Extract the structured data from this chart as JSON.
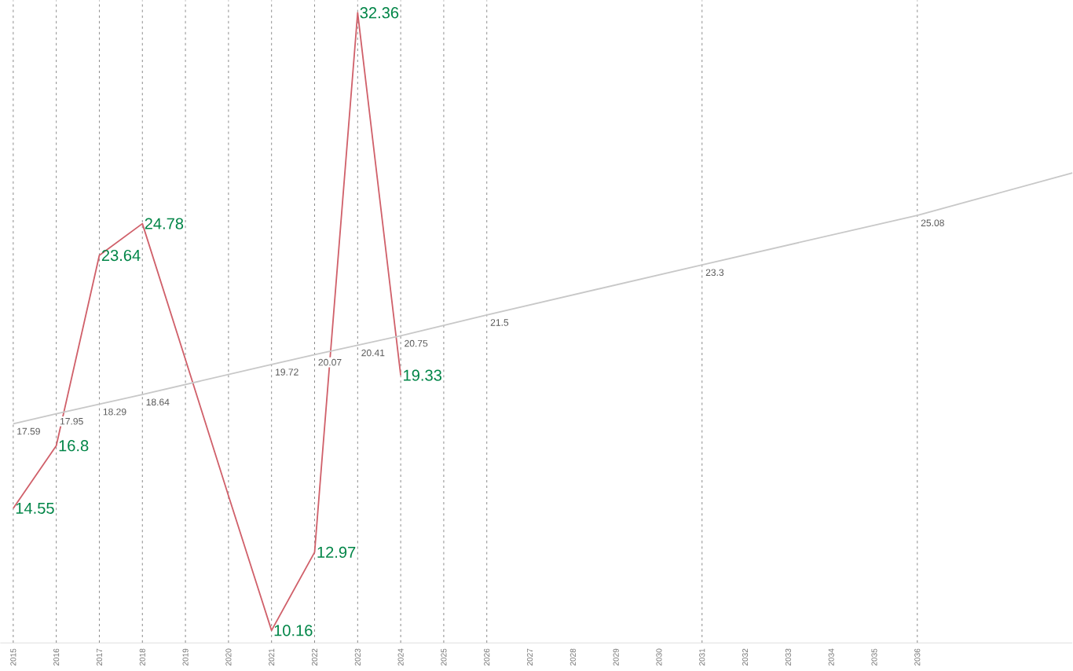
{
  "chart_data": {
    "type": "line",
    "series": [
      {
        "color": "#d0606a",
        "x": [
          2015,
          2016,
          2017,
          2018,
          2019,
          2020,
          2021,
          2022,
          2023,
          2024
        ],
        "values": [
          14.55,
          16.8,
          23.64,
          24.78,
          19.9,
          15.0,
          10.16,
          12.97,
          32.36,
          19.33
        ],
        "value_labels": [
          "14.55",
          "16.8",
          "23.64",
          "24.78",
          null,
          null,
          "10.16",
          "12.97",
          "32.36",
          "19.33"
        ]
      },
      {
        "color": "#c8c8c8",
        "x": [
          2015,
          2016,
          2017,
          2018,
          2021,
          2022,
          2023,
          2024,
          2026,
          2031,
          2036,
          2039.6
        ],
        "values": [
          17.59,
          17.95,
          18.29,
          18.64,
          19.72,
          20.07,
          20.41,
          20.75,
          21.5,
          23.3,
          25.08,
          26.6
        ],
        "value_labels": [
          "17.59",
          "17.95",
          "18.29",
          "18.64",
          "19.72",
          "20.07",
          "20.41",
          "20.75",
          "21.5",
          "23.3",
          "25.08",
          null
        ]
      }
    ],
    "xlim": [
      2014.7,
      2039.6
    ],
    "xticks": [
      2015,
      2016,
      2017,
      2018,
      2019,
      2020,
      2021,
      2022,
      2023,
      2024,
      2025,
      2026,
      2027,
      2028,
      2029,
      2030,
      2031,
      2032,
      2033,
      2034,
      2035,
      2036
    ],
    "tick_labels": "x",
    "marker": "none",
    "ref_lines": [
      {
        "axis": "x",
        "value": 2015,
        "line_style": "dashed"
      },
      {
        "axis": "x",
        "value": 2016,
        "line_style": "dashed"
      },
      {
        "axis": "x",
        "value": 2017,
        "line_style": "dashed"
      },
      {
        "axis": "x",
        "value": 2018,
        "line_style": "dashed"
      },
      {
        "axis": "x",
        "value": 2019,
        "line_style": "dashed"
      },
      {
        "axis": "x",
        "value": 2020,
        "line_style": "dashed"
      },
      {
        "axis": "x",
        "value": 2021,
        "line_style": "dashed"
      },
      {
        "axis": "x",
        "value": 2022,
        "line_style": "dashed"
      },
      {
        "axis": "x",
        "value": 2023,
        "line_style": "dashed"
      },
      {
        "axis": "x",
        "value": 2024,
        "line_style": "dashed"
      },
      {
        "axis": "x",
        "value": 2025,
        "line_style": "dashed"
      },
      {
        "axis": "x",
        "value": 2026,
        "line_style": "dashed"
      },
      {
        "axis": "x",
        "value": 2031,
        "line_style": "dashed"
      },
      {
        "axis": "x",
        "value": 2036,
        "line_style": "dashed"
      }
    ]
  }
}
